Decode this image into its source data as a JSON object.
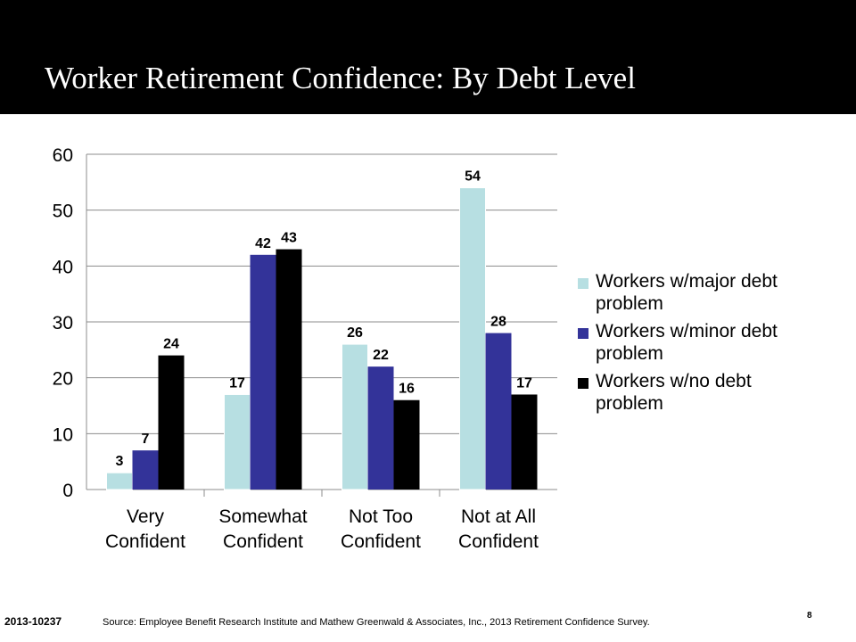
{
  "slide": {
    "title": "Worker Retirement Confidence: By Debt Level",
    "document_id": "2013-10237",
    "source": "Source: Employee Benefit Research Institute and Mathew Greenwald & Associates, Inc., 2013 Retirement Confidence Survey.",
    "page_number": "8"
  },
  "chart_data": {
    "type": "bar",
    "title": "",
    "xlabel": "",
    "ylabel": "",
    "ylim": [
      0,
      60
    ],
    "yticks": [
      0,
      10,
      20,
      30,
      40,
      50,
      60
    ],
    "grid": true,
    "legend_position": "right",
    "categories": [
      [
        "Very",
        "Confident"
      ],
      [
        "Somewhat",
        "Confident"
      ],
      [
        "Not Too",
        "Confident"
      ],
      [
        "Not at All",
        "Confident"
      ]
    ],
    "series": [
      {
        "name": "Workers w/major debt problem",
        "color": "#b7dfe2",
        "values": [
          3,
          17,
          26,
          54
        ]
      },
      {
        "name": "Workers w/minor debt problem",
        "color": "#333399",
        "values": [
          7,
          42,
          22,
          28
        ]
      },
      {
        "name": "Workers w/no debt problem",
        "color": "#000000",
        "values": [
          24,
          43,
          16,
          17
        ]
      }
    ]
  }
}
